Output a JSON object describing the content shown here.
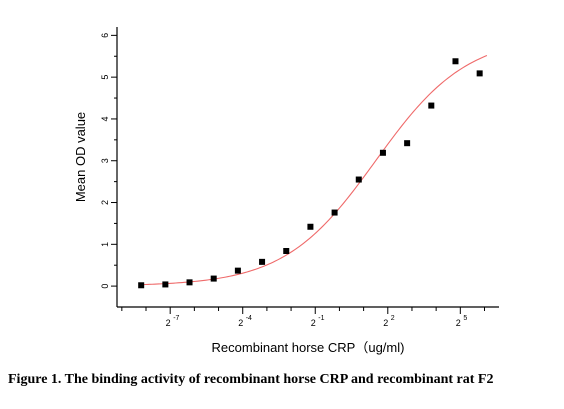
{
  "caption": "Figure 1. The binding activity of recombinant horse CRP and recombinant rat F2",
  "chart_data": {
    "type": "scatter",
    "xlabel": "Recombinant horse CRP（ug/ml)",
    "ylabel": "Mean OD value",
    "x_scale": "log2",
    "xlim": [
      -9.2,
      6.6
    ],
    "ylim": [
      -0.5,
      6.2
    ],
    "x_ticks": [
      {
        "base": "2",
        "exp": "-7",
        "value": -7
      },
      {
        "base": "2",
        "exp": "-4",
        "value": -4
      },
      {
        "base": "2",
        "exp": "-1",
        "value": -1
      },
      {
        "base": "2",
        "exp": "2",
        "value": 2
      },
      {
        "base": "2",
        "exp": "5",
        "value": 5
      }
    ],
    "x_minor_ticks": [
      -9,
      -8,
      -6,
      -5,
      -3,
      -2,
      0,
      1,
      3,
      4,
      6
    ],
    "y_ticks": [
      {
        "label": "0",
        "value": 0
      },
      {
        "label": "1",
        "value": 1
      },
      {
        "label": "2",
        "value": 2
      },
      {
        "label": "3",
        "value": 3
      },
      {
        "label": "4",
        "value": 4
      },
      {
        "label": "5",
        "value": 5
      },
      {
        "label": "6",
        "value": 6
      }
    ],
    "y_minor_ticks": [
      0.5,
      1.5,
      2.5,
      3.5,
      4.5,
      5.5
    ],
    "series": [
      {
        "type": "scatter",
        "color": "#000000",
        "x": [
          -8.2,
          -7.2,
          -6.2,
          -5.2,
          -4.2,
          -3.2,
          -2.2,
          -1.2,
          -0.2,
          0.8,
          1.8,
          2.8,
          3.8,
          4.8,
          5.8
        ],
        "y": [
          0.02,
          0.04,
          0.09,
          0.18,
          0.37,
          0.58,
          0.84,
          1.42,
          1.76,
          2.55,
          3.19,
          3.42,
          4.32,
          5.38,
          5.09
        ]
      },
      {
        "type": "line",
        "color": "#ef6a6a",
        "fit": {
          "bottom": 0.0,
          "top": 6.0,
          "log_ec50": 1.5,
          "slope": 0.23
        },
        "x_range": [
          -8.2,
          6.1
        ]
      }
    ],
    "grid": false,
    "legend": "none"
  }
}
